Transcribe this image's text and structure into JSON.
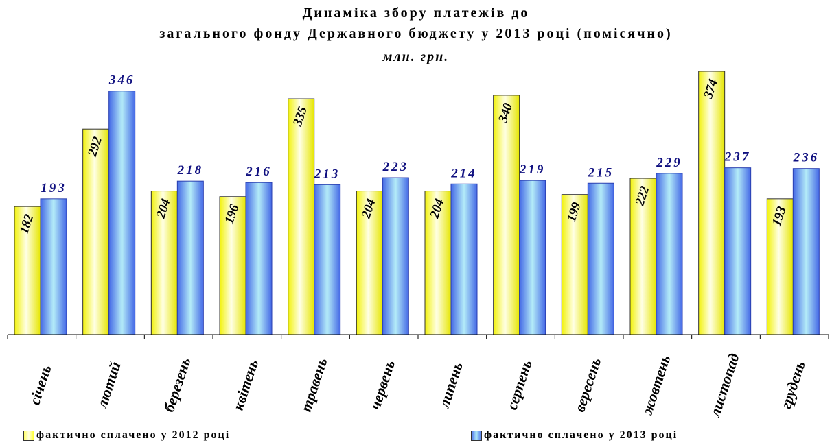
{
  "title_line1": "Динаміка збору платежів до",
  "title_line2": "загального фонду Державного бюджету у 2013 році (помісячно)",
  "unit": "млн. грн.",
  "chart_data": {
    "type": "bar",
    "title": "Динаміка збору платежів до загального фонду Державного бюджету у 2013 році (помісячно)",
    "ylabel": "млн. грн.",
    "categories": [
      "січень",
      "лютий",
      "березень",
      "квітень",
      "травень",
      "червень",
      "липень",
      "серпень",
      "вересень",
      "жовтень",
      "листопад",
      "грудень"
    ],
    "series": [
      {
        "name": "фактично сплачено у 2012 році",
        "values": [
          182,
          292,
          204,
          196,
          335,
          204,
          204,
          340,
          199,
          222,
          374,
          193
        ],
        "color": "#ffff66"
      },
      {
        "name": "фактично сплачено у 2013 році",
        "values": [
          193,
          346,
          218,
          216,
          213,
          223,
          214,
          219,
          215,
          229,
          237,
          236
        ],
        "color": "#4d72ee"
      }
    ],
    "grid": false,
    "legend": "bottom"
  }
}
